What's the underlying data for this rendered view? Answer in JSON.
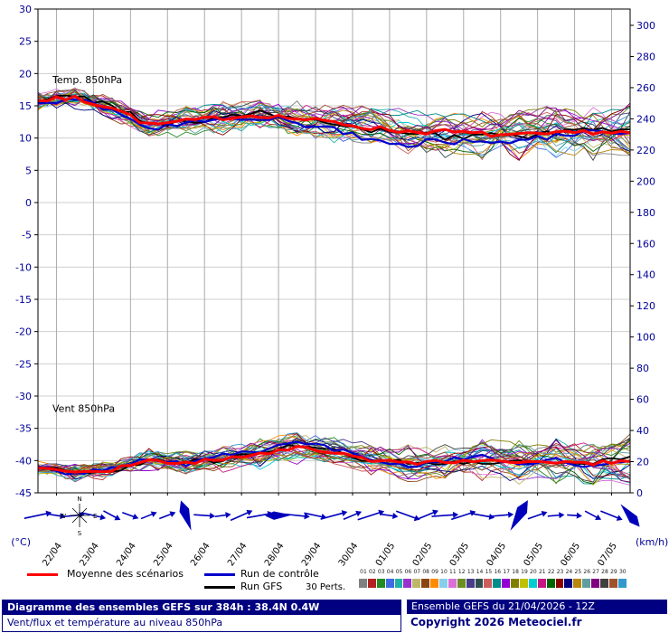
{
  "chart_data": {
    "type": "line",
    "title": "Diagramme des ensembles GEFS sur 384h : 38.4N 0.4W",
    "hours_total": 384,
    "x_dates": [
      "22/04",
      "23/04",
      "24/04",
      "25/04",
      "26/04",
      "27/04",
      "28/04",
      "29/04",
      "30/04",
      "01/05",
      "02/05",
      "03/05",
      "04/05",
      "05/05",
      "06/05",
      "07/05"
    ],
    "temp_axis": {
      "min": -45,
      "max": 30,
      "step": 5,
      "unit": "(°C)"
    },
    "wind_axis": {
      "min": 0,
      "max": 300,
      "step": 20,
      "unit": "(km/h)"
    },
    "temp_label": "Temp. 850hPa",
    "wind_label": "Vent 850hPa",
    "compass": {
      "n": "N",
      "e": "E",
      "s": "S",
      "w": "W"
    },
    "members": 30,
    "mean_color": "#ff0000",
    "control_color": "#0000cc",
    "gfs_color": "#000000",
    "temp_spread_start": 1.0,
    "temp_spread_end": 4.5,
    "wind_spread_start": 3,
    "wind_spread_end": 15,
    "member_colors": [
      "#808080",
      "#b22222",
      "#228b22",
      "#4169e1",
      "#20b2aa",
      "#9932cc",
      "#bdb76b",
      "#8b4513",
      "#ff8c00",
      "#87ceeb",
      "#da70d6",
      "#6b8e23",
      "#483d8b",
      "#2f4f4f",
      "#cd5c5c",
      "#008b8b",
      "#9400d3",
      "#808000",
      "#c0c000",
      "#00ced1",
      "#c71585",
      "#006400",
      "#8b0000",
      "#000080",
      "#b8860b",
      "#5f9ea0",
      "#800080",
      "#404040",
      "#a0522d",
      "#3399cc"
    ],
    "series": {
      "temp_mean_anchors": [
        15.8,
        16.2,
        14.8,
        12.0,
        12.6,
        13.2,
        13.6,
        13.0,
        12.4,
        11.6,
        11.0,
        11.0,
        10.6,
        10.4,
        10.6,
        11.0,
        10.8
      ],
      "temp_control_anchors": [
        15.8,
        16.0,
        14.5,
        11.5,
        12.2,
        12.8,
        13.2,
        12.4,
        11.2,
        9.8,
        9.0,
        9.6,
        9.2,
        9.8,
        10.4,
        10.8,
        10.4
      ],
      "temp_gfs_anchors": [
        15.8,
        16.4,
        15.2,
        12.2,
        12.4,
        13.4,
        13.8,
        13.2,
        12.0,
        11.2,
        10.6,
        10.2,
        10.4,
        10.0,
        10.8,
        11.4,
        11.0
      ],
      "wind_mean_anchors": [
        16,
        13,
        15,
        21,
        19,
        22,
        25,
        29,
        26,
        21,
        19,
        20,
        21,
        19,
        20,
        19,
        21
      ],
      "wind_control_anchors": [
        16,
        12,
        16,
        22,
        18,
        24,
        27,
        33,
        28,
        22,
        17,
        21,
        23,
        17,
        21,
        17,
        19
      ],
      "wind_gfs_anchors": [
        16,
        14,
        14,
        20,
        20,
        21,
        26,
        31,
        27,
        20,
        20,
        19,
        20,
        20,
        19,
        20,
        22
      ]
    }
  },
  "legend": {
    "mean_label": "Moyenne des scénarios",
    "control_label": "Run de contrôle",
    "gfs_label": "Run GFS",
    "perts_label": "30 Perts.",
    "pert_ids": [
      "01",
      "02",
      "03",
      "04",
      "05",
      "06",
      "07",
      "08",
      "09",
      "10",
      "11",
      "12",
      "13",
      "14",
      "15",
      "16",
      "17",
      "18",
      "19",
      "20",
      "21",
      "22",
      "23",
      "24",
      "25",
      "26",
      "27",
      "28",
      "29",
      "30"
    ]
  },
  "footer": {
    "title": "Diagramme des ensembles GEFS sur 384h : 38.4N 0.4W",
    "subtitle": "Vent/flux et température au niveau 850hPa",
    "run_info": "Ensemble GEFS du 21/04/2026 - 12Z",
    "copyright": "Copyright 2026 Meteociel.fr"
  }
}
